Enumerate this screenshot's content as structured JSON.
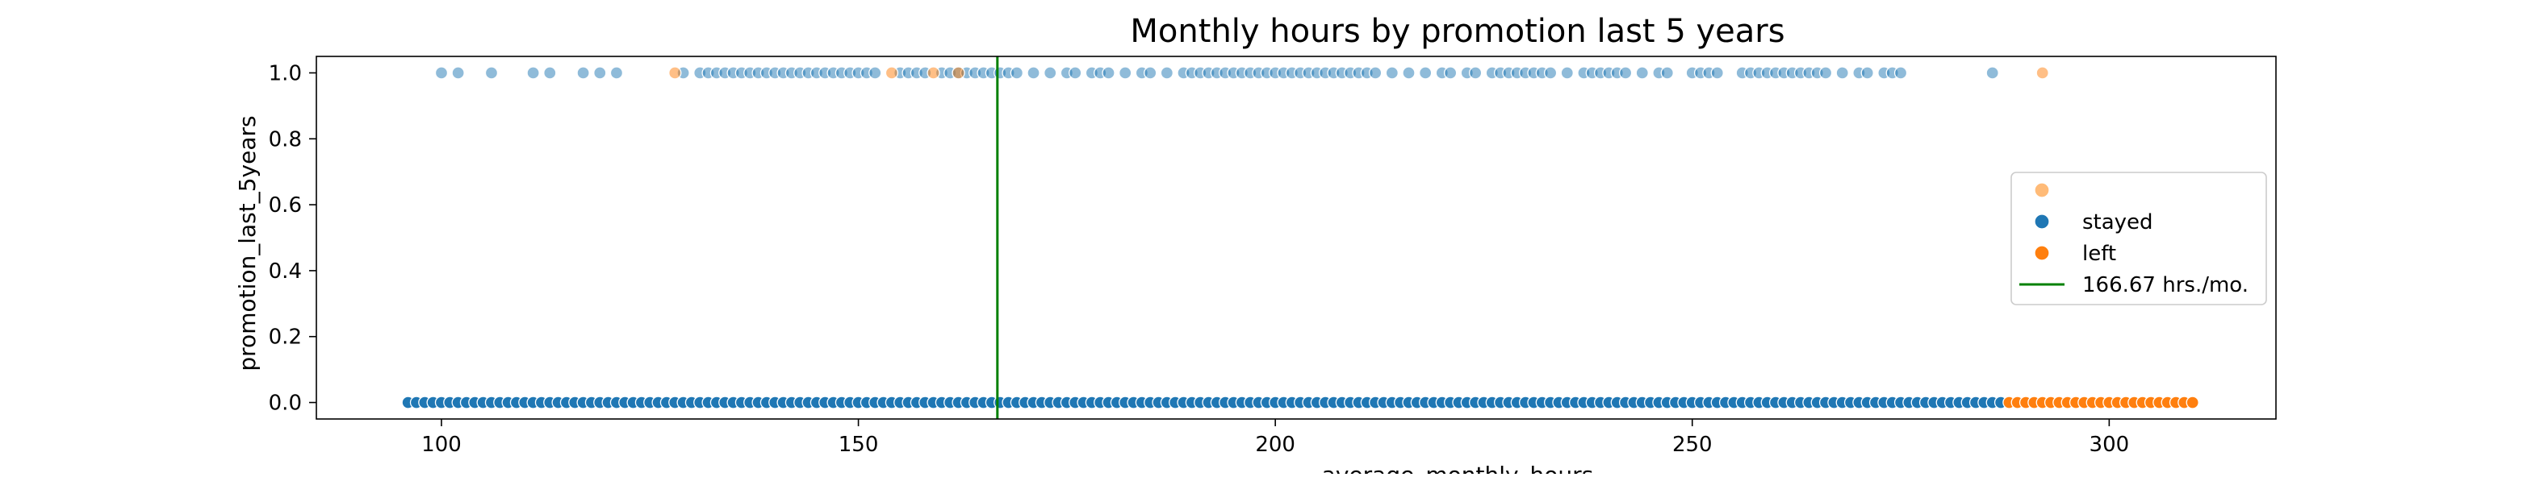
{
  "chart_data": {
    "type": "scatter",
    "title": "Monthly hours by promotion last 5 years",
    "xlabel": "average_monthly_hours",
    "ylabel": "promotion_last_5years",
    "xlim": [
      85,
      320
    ],
    "ylim": [
      -0.05,
      1.05
    ],
    "xticks": [
      100,
      150,
      200,
      250,
      300
    ],
    "xtick_labels": [
      "100",
      "150",
      "200",
      "250",
      "300"
    ],
    "yticks": [
      0.0,
      0.2,
      0.4,
      0.6,
      0.8,
      1.0
    ],
    "ytick_labels": [
      "0.0",
      "0.2",
      "0.4",
      "0.6",
      "0.8",
      "1.0"
    ],
    "grid": false,
    "colors": {
      "stayed": "#1f77b4",
      "left": "#ff7f0e",
      "line": "#008000"
    },
    "vline": {
      "x": 166.67,
      "label": "166.67 hrs./mo."
    },
    "legend": {
      "location": "center-right",
      "entries": [
        {
          "label": "",
          "kind": "marker",
          "color": "#ffbb78"
        },
        {
          "label": "stayed",
          "kind": "marker",
          "color": "#1f77b4"
        },
        {
          "label": "left",
          "kind": "marker",
          "color": "#ff7f0e"
        },
        {
          "label": "166.67 hrs./mo.",
          "kind": "line",
          "color": "#008000"
        }
      ]
    },
    "series": [
      {
        "name": "stayed",
        "y": 0,
        "x_range": [
          96,
          287
        ],
        "x_step": 1
      },
      {
        "name": "left",
        "y": 0,
        "x_range": [
          288,
          310
        ],
        "x_step": 1
      },
      {
        "name": "stayed",
        "y": 1,
        "x": [
          100,
          102,
          106,
          111,
          113,
          117,
          119,
          121,
          129,
          131,
          132,
          133,
          134,
          135,
          136,
          137,
          138,
          139,
          140,
          141,
          142,
          143,
          144,
          145,
          146,
          147,
          148,
          149,
          150,
          151,
          152,
          155,
          156,
          157,
          158,
          160,
          161,
          162,
          163,
          164,
          165,
          166,
          167,
          168,
          169,
          171,
          173,
          175,
          176,
          178,
          179,
          180,
          182,
          184,
          185,
          187,
          189,
          190,
          191,
          192,
          193,
          194,
          195,
          196,
          197,
          198,
          199,
          200,
          201,
          202,
          203,
          204,
          205,
          206,
          207,
          208,
          209,
          210,
          211,
          212,
          214,
          216,
          218,
          220,
          221,
          223,
          224,
          226,
          227,
          228,
          229,
          230,
          231,
          232,
          233,
          235,
          237,
          238,
          239,
          240,
          241,
          242,
          244,
          246,
          247,
          250,
          251,
          252,
          253,
          256,
          257,
          258,
          259,
          260,
          261,
          262,
          263,
          264,
          265,
          266,
          268,
          270,
          271,
          273,
          274,
          275,
          286
        ]
      },
      {
        "name": "left",
        "y": 1,
        "x": [
          128,
          154,
          159,
          162,
          292
        ]
      }
    ]
  }
}
